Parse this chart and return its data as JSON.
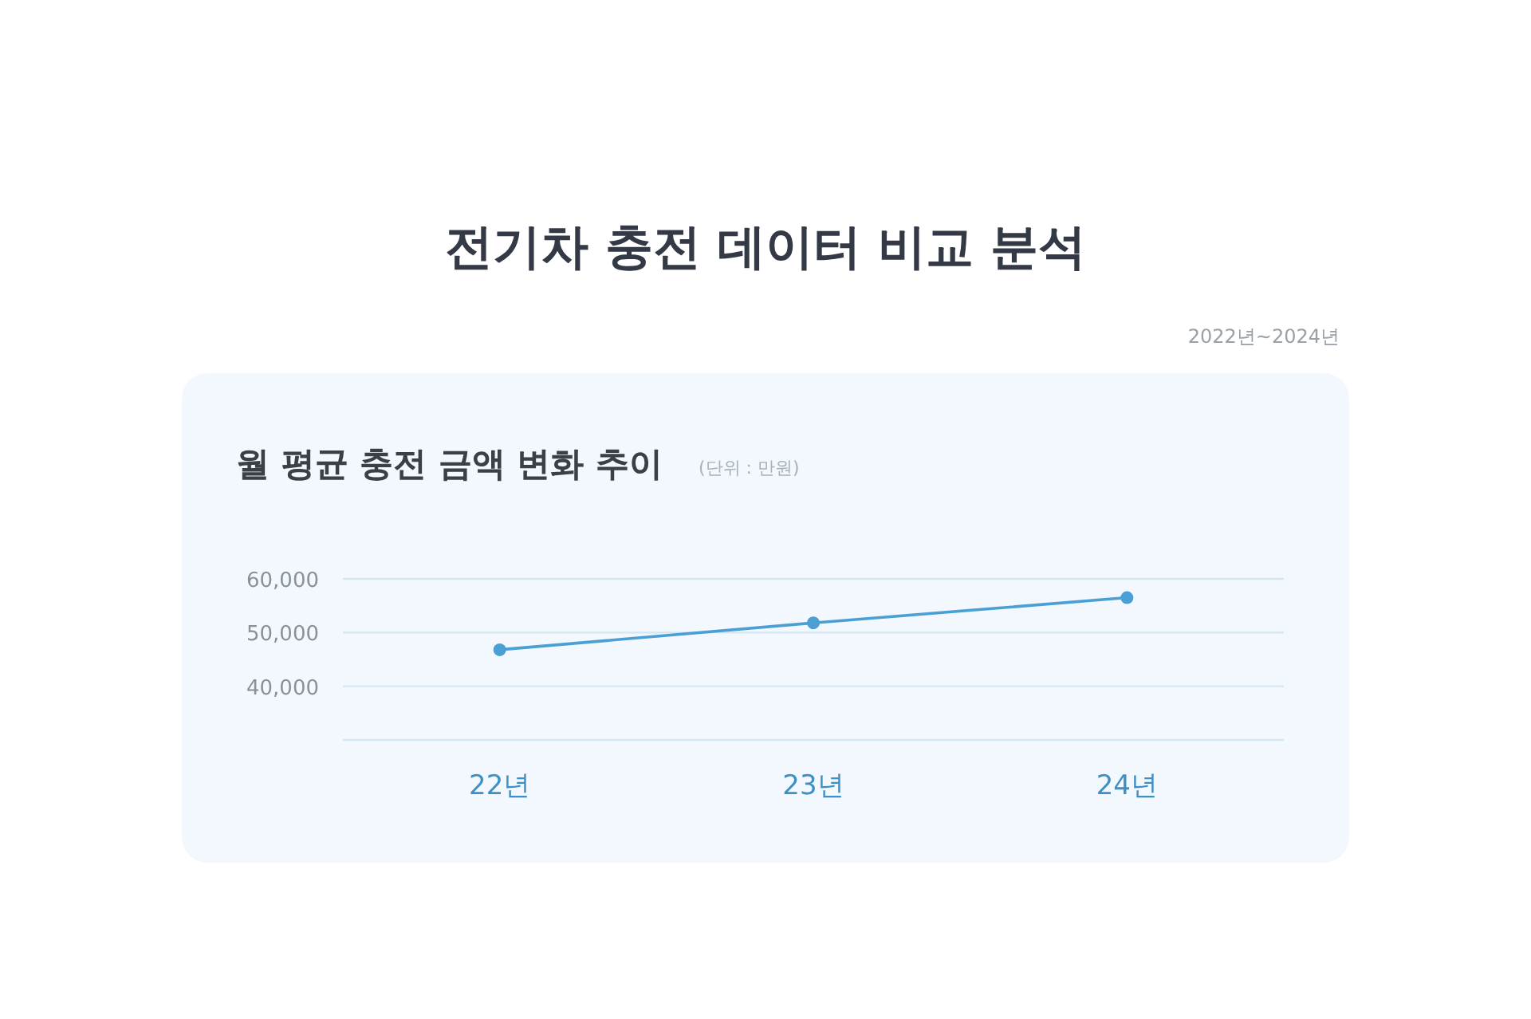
{
  "chart_data": {
    "type": "line",
    "title": "전기차 충전 데이터 비교 분석",
    "subtitle": "월 평균 충전 금액 변화 추이",
    "annotations": [
      "2022년~2024년",
      "(단위 : 만원)"
    ],
    "categories": [
      "22년",
      "23년",
      "24년"
    ],
    "series": [
      {
        "color": "#4a9fd4",
        "values": [
          46800,
          51800,
          56500
        ]
      }
    ],
    "ylim": [
      30000,
      60000
    ],
    "yticks": [
      {
        "value": 60000,
        "label": "60,000"
      },
      {
        "value": 50000,
        "label": "50,000"
      },
      {
        "value": 40000,
        "label": "40,000"
      },
      {
        "value": 30000,
        "label": null
      }
    ],
    "grid": "y",
    "marker": "circle",
    "line_style": "solid"
  }
}
